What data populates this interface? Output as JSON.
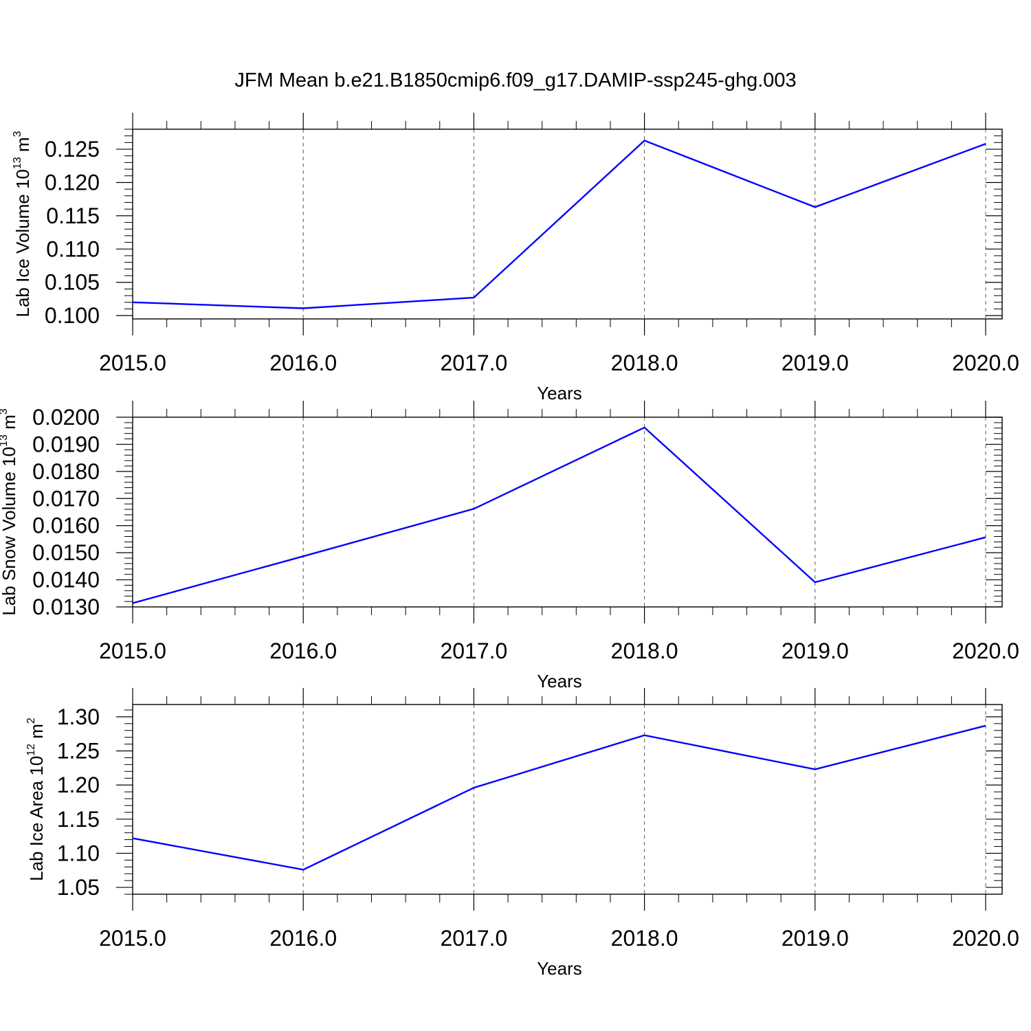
{
  "title": "JFM Mean b.e21.B1850cmip6.f09_g17.DAMIP-ssp245-ghg.003",
  "colors": {
    "line": "#0000ff",
    "axes": "#000000",
    "grid": "#555555"
  },
  "chart_data": [
    {
      "type": "line",
      "x": [
        2015,
        2016,
        2017,
        2018,
        2019,
        2020
      ],
      "series": [
        {
          "values": [
            0.102,
            0.1011,
            0.1027,
            0.1263,
            0.1163,
            0.1258
          ]
        }
      ],
      "xlabel": "Years",
      "ylabel": {
        "text": "Lab Ice Volume 10",
        "exp": "13",
        "unit": " m",
        "unit_exp": "3"
      },
      "xlim": [
        2015,
        2020
      ],
      "ylim": [
        0.0995,
        0.128
      ],
      "xticks": [
        2015,
        2016,
        2017,
        2018,
        2019,
        2020
      ],
      "xtick_labels": [
        "2015.0",
        "2016.0",
        "2017.0",
        "2018.0",
        "2019.0",
        "2020.0"
      ],
      "yticks": [
        0.1,
        0.105,
        0.11,
        0.115,
        0.12,
        0.125
      ],
      "ytick_labels": [
        "0.100",
        "0.105",
        "0.110",
        "0.115",
        "0.120",
        "0.125"
      ],
      "grid": "vertical dashed"
    },
    {
      "type": "line",
      "x": [
        2015,
        2016,
        2017,
        2018,
        2019,
        2020
      ],
      "series": [
        {
          "values": [
            0.01314,
            0.01487,
            0.01662,
            0.01962,
            0.01391,
            0.01557
          ]
        }
      ],
      "xlabel": "Years",
      "ylabel": {
        "text": "Lab Snow Volume 10",
        "exp": "13",
        "unit": " m",
        "unit_exp": "3"
      },
      "xlim": [
        2015,
        2020
      ],
      "ylim": [
        0.013,
        0.02
      ],
      "xticks": [
        2015,
        2016,
        2017,
        2018,
        2019,
        2020
      ],
      "xtick_labels": [
        "2015.0",
        "2016.0",
        "2017.0",
        "2018.0",
        "2019.0",
        "2020.0"
      ],
      "yticks": [
        0.013,
        0.014,
        0.015,
        0.016,
        0.017,
        0.018,
        0.019,
        0.02
      ],
      "ytick_labels": [
        "0.0130",
        "0.0140",
        "0.0150",
        "0.0160",
        "0.0170",
        "0.0180",
        "0.0190",
        "0.0200"
      ],
      "grid": "vertical dashed"
    },
    {
      "type": "line",
      "x": [
        2015,
        2016,
        2017,
        2018,
        2019,
        2020
      ],
      "series": [
        {
          "values": [
            1.122,
            1.076,
            1.196,
            1.273,
            1.223,
            1.287
          ]
        }
      ],
      "xlabel": "Years",
      "ylabel": {
        "text": "Lab Ice Area 10",
        "exp": "12",
        "unit": " m",
        "unit_exp": "2"
      },
      "xlim": [
        2015,
        2020
      ],
      "ylim": [
        1.04,
        1.318
      ],
      "xticks": [
        2015,
        2016,
        2017,
        2018,
        2019,
        2020
      ],
      "xtick_labels": [
        "2015.0",
        "2016.0",
        "2017.0",
        "2018.0",
        "2019.0",
        "2020.0"
      ],
      "yticks": [
        1.05,
        1.1,
        1.15,
        1.2,
        1.25,
        1.3
      ],
      "ytick_labels": [
        "1.05",
        "1.10",
        "1.15",
        "1.20",
        "1.25",
        "1.30"
      ],
      "grid": "vertical dashed"
    }
  ]
}
